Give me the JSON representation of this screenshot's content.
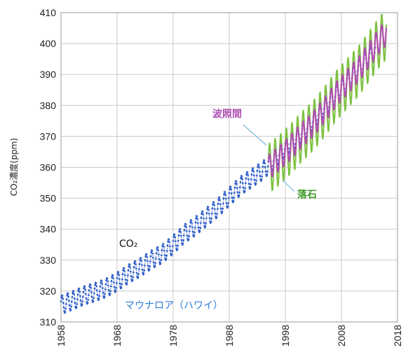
{
  "chart_data": {
    "type": "line",
    "ylabel": "CO₂濃度(ppm)",
    "xlim": [
      1958,
      2018
    ],
    "ylim": [
      310,
      410
    ],
    "xticks": [
      "1958",
      "1968",
      "1978",
      "1988",
      "1998",
      "2008",
      "2018"
    ],
    "yticks": [
      "310",
      "320",
      "330",
      "340",
      "350",
      "360",
      "370",
      "380",
      "390",
      "400",
      "410"
    ],
    "grid": true,
    "series": [
      {
        "name": "マウナロア(ハワイ)",
        "color": "#2f5fc8",
        "x": [
          1958,
          1960,
          1962,
          1964,
          1966,
          1968,
          1970,
          1972,
          1974,
          1976,
          1978,
          1980,
          1982,
          1984,
          1986,
          1988,
          1990,
          1992,
          1994,
          1996,
          1998,
          2000,
          2002,
          2004,
          2006,
          2008,
          2010,
          2012,
          2014
        ],
        "y": [
          315.5,
          316.9,
          318.5,
          319.6,
          321.0,
          323.0,
          325.5,
          327.5,
          330.0,
          332.0,
          335.0,
          338.5,
          341.0,
          344.0,
          347.0,
          350.5,
          354.0,
          356.5,
          359.0,
          362.5,
          366.5,
          369.5,
          373.0,
          377.5,
          381.5,
          385.5,
          389.5,
          394.0,
          397.5
        ],
        "seasonal_amplitude_ppm": 3
      },
      {
        "name": "落石",
        "color": "#7dc242",
        "x": [
          1995,
          1997,
          1999,
          2001,
          2003,
          2005,
          2007,
          2009,
          2011,
          2013,
          2015,
          2016
        ],
        "y": [
          359.5,
          362.5,
          366.0,
          370.0,
          373.5,
          378.0,
          383.0,
          387.0,
          391.0,
          396.0,
          401.0,
          403.0
        ],
        "seasonal_amplitude_ppm": 8
      },
      {
        "name": "波照間",
        "color": "#b04fb0",
        "x": [
          1995,
          1997,
          1999,
          2001,
          2003,
          2005,
          2007,
          2009,
          2011,
          2013,
          2015,
          2016
        ],
        "y": [
          360.0,
          363.0,
          366.5,
          370.5,
          374.0,
          378.5,
          383.5,
          387.5,
          391.5,
          396.5,
          401.5,
          403.5
        ],
        "seasonal_amplitude_ppm": 4
      }
    ],
    "annotations": [
      {
        "text": "波照間",
        "color": "#b04fb0"
      },
      {
        "text": "落石",
        "color": "#3a9a2a"
      },
      {
        "text": "CO₂",
        "color": "#111111"
      },
      {
        "text": "マウナロア（ハワイ）",
        "color": "#2f7fd6"
      }
    ]
  }
}
